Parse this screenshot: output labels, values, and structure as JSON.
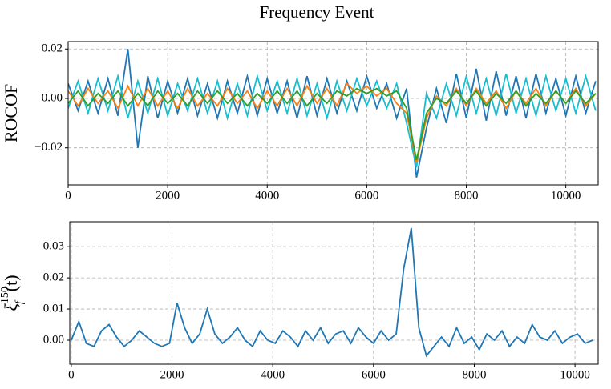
{
  "title": "Frequency Event",
  "chart_data": [
    {
      "type": "line",
      "ylabel": "ROCOF",
      "x": [
        0,
        200,
        400,
        600,
        800,
        1000,
        1200,
        1400,
        1600,
        1800,
        2000,
        2200,
        2400,
        2600,
        2800,
        3000,
        3200,
        3400,
        3600,
        3800,
        4000,
        4200,
        4400,
        4600,
        4800,
        5000,
        5200,
        5400,
        5600,
        5800,
        6000,
        6200,
        6400,
        6600,
        6800,
        7000,
        7200,
        7400,
        7600,
        7800,
        8000,
        8200,
        8400,
        8600,
        8800,
        9000,
        9200,
        9400,
        9600,
        9800,
        10000,
        10200,
        10400,
        10600
      ],
      "series": [
        {
          "color": "#1f77b4",
          "values": [
            0.006,
            -0.005,
            0.007,
            -0.006,
            0.008,
            -0.007,
            0.02,
            -0.02,
            0.009,
            -0.008,
            0.007,
            -0.006,
            0.008,
            -0.007,
            0.006,
            -0.008,
            0.007,
            -0.006,
            0.009,
            -0.007,
            0.008,
            -0.006,
            0.007,
            -0.008,
            0.009,
            -0.007,
            0.008,
            -0.006,
            0.007,
            -0.005,
            0.009,
            -0.004,
            0.006,
            -0.008,
            0.004,
            -0.032,
            -0.012,
            0.004,
            -0.01,
            0.01,
            -0.008,
            0.012,
            -0.009,
            0.011,
            -0.007,
            0.009,
            -0.008,
            0.01,
            -0.006,
            0.008,
            -0.007,
            0.009,
            -0.006,
            0.007
          ]
        },
        {
          "color": "#17becf",
          "values": [
            -0.004,
            0.007,
            -0.006,
            0.008,
            -0.005,
            0.009,
            -0.008,
            0.007,
            -0.006,
            0.008,
            -0.007,
            0.006,
            -0.005,
            0.008,
            -0.006,
            0.007,
            -0.008,
            0.006,
            -0.007,
            0.009,
            -0.005,
            0.007,
            -0.006,
            0.008,
            -0.007,
            0.006,
            -0.008,
            0.007,
            -0.005,
            0.008,
            -0.003,
            0.007,
            -0.004,
            0.006,
            -0.01,
            -0.028,
            0.002,
            -0.008,
            0.006,
            -0.007,
            0.009,
            -0.006,
            0.008,
            -0.007,
            0.01,
            -0.006,
            0.008,
            -0.007,
            0.009,
            -0.005,
            0.008,
            -0.006,
            0.009,
            -0.005
          ]
        },
        {
          "color": "#ff7f0e",
          "values": [
            0.003,
            -0.003,
            0.004,
            -0.002,
            0.003,
            -0.004,
            0.005,
            -0.003,
            0.004,
            -0.003,
            0.003,
            -0.004,
            0.004,
            -0.003,
            0.002,
            -0.003,
            0.004,
            -0.002,
            0.003,
            -0.004,
            0.003,
            -0.003,
            0.004,
            -0.003,
            0.005,
            -0.002,
            0.004,
            -0.003,
            0.006,
            0.002,
            0.005,
            0.001,
            0.004,
            -0.002,
            -0.006,
            -0.026,
            -0.008,
            0.001,
            -0.003,
            0.004,
            -0.003,
            0.004,
            -0.002,
            0.003,
            -0.004,
            0.003,
            -0.002,
            0.004,
            -0.003,
            0.003,
            -0.002,
            0.004,
            -0.003,
            0.002
          ]
        },
        {
          "color": "#2ca02c",
          "values": [
            -0.002,
            0.003,
            -0.003,
            0.002,
            -0.002,
            0.003,
            -0.003,
            0.002,
            -0.003,
            0.003,
            -0.002,
            0.002,
            -0.003,
            0.003,
            -0.002,
            0.003,
            -0.002,
            0.002,
            -0.003,
            0.002,
            -0.002,
            0.003,
            -0.002,
            0.003,
            -0.003,
            0.002,
            -0.002,
            0.003,
            0.001,
            0.004,
            0.002,
            0.004,
            0.001,
            0.003,
            -0.004,
            -0.025,
            -0.006,
            0.0,
            -0.002,
            0.003,
            -0.002,
            0.003,
            -0.003,
            0.002,
            -0.002,
            0.003,
            -0.003,
            0.002,
            -0.002,
            0.003,
            -0.002,
            0.003,
            -0.002,
            0.002
          ]
        }
      ],
      "xlim": [
        0,
        10650
      ],
      "xticks": [
        0,
        2000,
        4000,
        6000,
        8000,
        10000
      ],
      "ylim": [
        -0.035,
        0.023
      ],
      "yticks": [
        {
          "value": -0.02,
          "label": "−0.02"
        },
        {
          "value": 0,
          "label": "0.00"
        },
        0.02
      ],
      "grid": true
    },
    {
      "type": "line",
      "ylabel": {
        "base": "ξ",
        "sub": "f",
        "sup": "150",
        "rest": "(t)"
      },
      "x": [
        0,
        150,
        300,
        450,
        600,
        750,
        900,
        1050,
        1200,
        1350,
        1500,
        1650,
        1800,
        1950,
        2100,
        2250,
        2400,
        2550,
        2700,
        2850,
        3000,
        3150,
        3300,
        3450,
        3600,
        3750,
        3900,
        4050,
        4200,
        4350,
        4500,
        4650,
        4800,
        4950,
        5100,
        5250,
        5400,
        5550,
        5700,
        5850,
        6000,
        6150,
        6300,
        6450,
        6600,
        6750,
        6900,
        7050,
        7200,
        7350,
        7500,
        7650,
        7800,
        7950,
        8100,
        8250,
        8400,
        8550,
        8700,
        8850,
        9000,
        9150,
        9300,
        9450,
        9600,
        9750,
        9900,
        10050,
        10200,
        10350
      ],
      "series": [
        {
          "color": "#1f77b4",
          "values": [
            0.0,
            0.006,
            -0.001,
            -0.002,
            0.003,
            0.005,
            0.001,
            -0.002,
            0.0,
            0.003,
            0.001,
            -0.001,
            -0.002,
            -0.001,
            0.012,
            0.004,
            -0.001,
            0.002,
            0.01,
            0.002,
            -0.001,
            0.001,
            0.004,
            0.0,
            -0.002,
            0.003,
            0.0,
            -0.001,
            0.003,
            0.001,
            -0.002,
            0.003,
            0.0,
            0.004,
            -0.001,
            0.002,
            0.003,
            -0.001,
            0.004,
            0.001,
            -0.001,
            0.003,
            0.0,
            0.002,
            0.023,
            0.036,
            0.004,
            -0.005,
            -0.002,
            0.001,
            -0.002,
            0.004,
            -0.001,
            0.001,
            -0.003,
            0.002,
            0.0,
            0.003,
            -0.002,
            0.001,
            -0.001,
            0.005,
            0.001,
            0.0,
            0.003,
            -0.001,
            0.001,
            0.002,
            -0.001,
            0.0
          ]
        }
      ],
      "xlim": [
        -30,
        10460
      ],
      "xticks": [
        0,
        2000,
        4000,
        6000,
        8000,
        10000
      ],
      "ylim": [
        -0.0077,
        0.038
      ],
      "yticks": [
        {
          "value": 0,
          "label": "0.00"
        },
        0.01,
        0.02,
        0.03
      ],
      "grid": true
    }
  ]
}
